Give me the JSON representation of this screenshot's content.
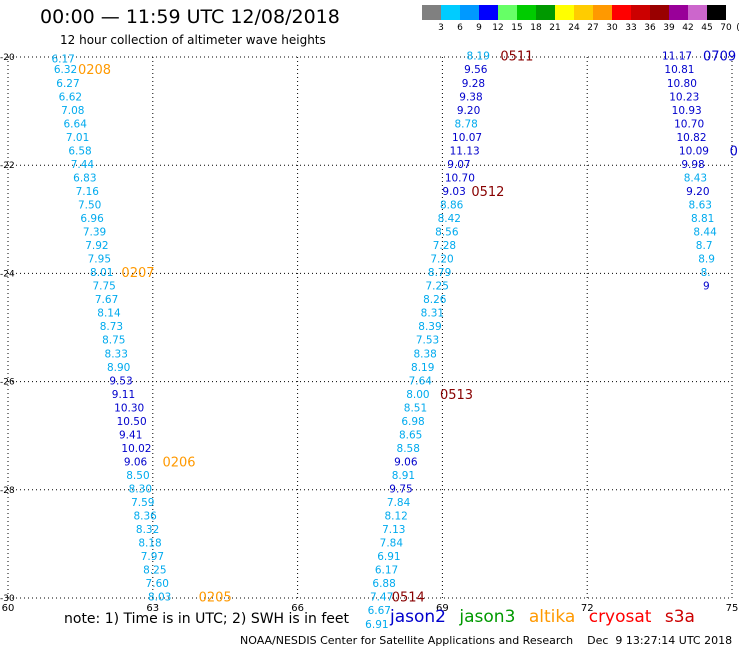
{
  "title": "00:00 — 11:59 UTC 12/08/2018",
  "subtitle": "12 hour collection of altimeter wave heights",
  "footer_note": "note:  1) Time is in UTC;  2) SWH is in feet",
  "credit": "NOAA/NESDIS Center for Satellite Applications and Research    Dec  9 13:27:14 UTC 2018",
  "satellites": [
    {
      "name": "jason2",
      "color": "#0000cc"
    },
    {
      "name": "jason3",
      "color": "#009900"
    },
    {
      "name": "altika",
      "color": "#ff9900"
    },
    {
      "name": "cryosat",
      "color": "#ff0000"
    },
    {
      "name": "s3a",
      "color": "#cc0000"
    }
  ],
  "colorbar": {
    "unit": "(ft)",
    "labels": [
      "3",
      "6",
      "9",
      "12",
      "15",
      "18",
      "21",
      "24",
      "27",
      "30",
      "33",
      "36",
      "39",
      "42",
      "45",
      "70"
    ],
    "colors": [
      "#808080",
      "#00ccff",
      "#0099ff",
      "#0000ff",
      "#66ff66",
      "#00cc00",
      "#009900",
      "#ffff00",
      "#ffcc00",
      "#ff9900",
      "#ff0000",
      "#cc0000",
      "#990000",
      "#990099",
      "#cc66cc",
      "#000000"
    ]
  },
  "chart_data": {
    "type": "scatter",
    "title": "00:00 — 11:59 UTC 12/08/2018",
    "subtitle": "12 hour collection of altimeter wave heights",
    "xlim": [
      60,
      75
    ],
    "ylim": [
      -30,
      -20
    ],
    "x_ticks": [
      "60",
      "63",
      "66",
      "69",
      "72",
      "75"
    ],
    "y_ticks": [
      "-20",
      "-22",
      "-24",
      "-26",
      "-28",
      "-30"
    ],
    "grid": true,
    "value_colors": {
      "low": "#00aaee",
      "mid": "#0000cc"
    },
    "tracks": [
      {
        "name": "altika",
        "label_color": "#ff9900",
        "points": [
          {
            "x": 60.9,
            "y": -20.1,
            "v": "6.17"
          },
          {
            "x": 60.95,
            "y": -20.3,
            "v": "6.32"
          },
          {
            "x": 61.0,
            "y": -20.55,
            "v": "6.27"
          },
          {
            "x": 61.05,
            "y": -20.8,
            "v": "6.62"
          },
          {
            "x": 61.1,
            "y": -21.05,
            "v": "7.08"
          },
          {
            "x": 61.15,
            "y": -21.3,
            "v": "6.64"
          },
          {
            "x": 61.2,
            "y": -21.55,
            "v": "7.01"
          },
          {
            "x": 61.25,
            "y": -21.8,
            "v": "6.58"
          },
          {
            "x": 61.3,
            "y": -22.05,
            "v": "7.44"
          },
          {
            "x": 61.35,
            "y": -22.3,
            "v": "6.83"
          },
          {
            "x": 61.4,
            "y": -22.55,
            "v": "7.16"
          },
          {
            "x": 61.45,
            "y": -22.8,
            "v": "7.50"
          },
          {
            "x": 61.5,
            "y": -23.05,
            "v": "6.96"
          },
          {
            "x": 61.55,
            "y": -23.3,
            "v": "7.39"
          },
          {
            "x": 61.6,
            "y": -23.55,
            "v": "7.92"
          },
          {
            "x": 61.65,
            "y": -23.8,
            "v": "7.95"
          },
          {
            "x": 61.7,
            "y": -24.05,
            "v": "8.01"
          },
          {
            "x": 61.75,
            "y": -24.3,
            "v": "7.75"
          },
          {
            "x": 61.8,
            "y": -24.55,
            "v": "7.67"
          },
          {
            "x": 61.85,
            "y": -24.8,
            "v": "8.14"
          },
          {
            "x": 61.9,
            "y": -25.05,
            "v": "8.73"
          },
          {
            "x": 61.95,
            "y": -25.3,
            "v": "8.75"
          },
          {
            "x": 62.0,
            "y": -25.55,
            "v": "8.33"
          },
          {
            "x": 62.05,
            "y": -25.8,
            "v": "8.90"
          },
          {
            "x": 62.1,
            "y": -26.05,
            "v": "9.53"
          },
          {
            "x": 62.15,
            "y": -26.3,
            "v": "9.11"
          },
          {
            "x": 62.2,
            "y": -26.55,
            "v": "10.30"
          },
          {
            "x": 62.25,
            "y": -26.8,
            "v": "10.50"
          },
          {
            "x": 62.3,
            "y": -27.05,
            "v": "9.41"
          },
          {
            "x": 62.35,
            "y": -27.3,
            "v": "10.02"
          },
          {
            "x": 62.4,
            "y": -27.55,
            "v": "9.06"
          },
          {
            "x": 62.45,
            "y": -27.8,
            "v": "8.50"
          },
          {
            "x": 62.5,
            "y": -28.05,
            "v": "8.30"
          },
          {
            "x": 62.55,
            "y": -28.3,
            "v": "7.59"
          },
          {
            "x": 62.6,
            "y": -28.55,
            "v": "8.36"
          },
          {
            "x": 62.65,
            "y": -28.8,
            "v": "8.32"
          },
          {
            "x": 62.7,
            "y": -29.05,
            "v": "8.18"
          },
          {
            "x": 62.75,
            "y": -29.3,
            "v": "7.97"
          },
          {
            "x": 62.8,
            "y": -29.55,
            "v": "8.25"
          },
          {
            "x": 62.85,
            "y": -29.8,
            "v": "7.60"
          },
          {
            "x": 62.9,
            "y": -30.05,
            "v": "8.03"
          }
        ],
        "time_labels": [
          {
            "x": 61.45,
            "y": -20.3,
            "t": "0208"
          },
          {
            "x": 62.35,
            "y": -24.05,
            "t": "0207"
          },
          {
            "x": 63.2,
            "y": -27.55,
            "t": "0206"
          },
          {
            "x": 63.95,
            "y": -30.05,
            "t": "0205"
          }
        ]
      },
      {
        "name": "s3a",
        "label_color": "#880000",
        "points": [
          {
            "x": 69.5,
            "y": -20.05,
            "v": "8.19"
          },
          {
            "x": 69.45,
            "y": -20.3,
            "v": "9.56"
          },
          {
            "x": 69.4,
            "y": -20.55,
            "v": "9.28"
          },
          {
            "x": 69.35,
            "y": -20.8,
            "v": "9.38"
          },
          {
            "x": 69.3,
            "y": -21.05,
            "v": "9.20"
          },
          {
            "x": 69.25,
            "y": -21.3,
            "v": "8.78"
          },
          {
            "x": 69.2,
            "y": -21.55,
            "v": "10.07"
          },
          {
            "x": 69.15,
            "y": -21.8,
            "v": "11.13"
          },
          {
            "x": 69.1,
            "y": -22.05,
            "v": "9.07"
          },
          {
            "x": 69.05,
            "y": -22.3,
            "v": "10.70"
          },
          {
            "x": 69.0,
            "y": -22.55,
            "v": "9.03"
          },
          {
            "x": 68.95,
            "y": -22.8,
            "v": "8.86"
          },
          {
            "x": 68.9,
            "y": -23.05,
            "v": "8.42"
          },
          {
            "x": 68.85,
            "y": -23.3,
            "v": "8.56"
          },
          {
            "x": 68.8,
            "y": -23.55,
            "v": "7.28"
          },
          {
            "x": 68.75,
            "y": -23.8,
            "v": "7.20"
          },
          {
            "x": 68.7,
            "y": -24.05,
            "v": "8.79"
          },
          {
            "x": 68.65,
            "y": -24.3,
            "v": "7.25"
          },
          {
            "x": 68.6,
            "y": -24.55,
            "v": "8.26"
          },
          {
            "x": 68.55,
            "y": -24.8,
            "v": "8.31"
          },
          {
            "x": 68.5,
            "y": -25.05,
            "v": "8.39"
          },
          {
            "x": 68.45,
            "y": -25.3,
            "v": "7.53"
          },
          {
            "x": 68.4,
            "y": -25.55,
            "v": "8.38"
          },
          {
            "x": 68.35,
            "y": -25.8,
            "v": "8.19"
          },
          {
            "x": 68.3,
            "y": -26.05,
            "v": "7.64"
          },
          {
            "x": 68.25,
            "y": -26.3,
            "v": "8.00"
          },
          {
            "x": 68.2,
            "y": -26.55,
            "v": "8.51"
          },
          {
            "x": 68.15,
            "y": -26.8,
            "v": "6.98"
          },
          {
            "x": 68.1,
            "y": -27.05,
            "v": "8.65"
          },
          {
            "x": 68.05,
            "y": -27.3,
            "v": "8.58"
          },
          {
            "x": 68.0,
            "y": -27.55,
            "v": "9.06"
          },
          {
            "x": 67.95,
            "y": -27.8,
            "v": "8.91"
          },
          {
            "x": 67.9,
            "y": -28.05,
            "v": "9.75"
          },
          {
            "x": 67.85,
            "y": -28.3,
            "v": "7.84"
          },
          {
            "x": 67.8,
            "y": -28.55,
            "v": "8.12"
          },
          {
            "x": 67.75,
            "y": -28.8,
            "v": "7.13"
          },
          {
            "x": 67.7,
            "y": -29.05,
            "v": "7.84"
          },
          {
            "x": 67.65,
            "y": -29.3,
            "v": "6.91"
          },
          {
            "x": 67.6,
            "y": -29.55,
            "v": "6.17"
          },
          {
            "x": 67.55,
            "y": -29.8,
            "v": "6.88"
          },
          {
            "x": 67.5,
            "y": -30.05,
            "v": "7.47"
          },
          {
            "x": 67.45,
            "y": -30.3,
            "v": "6.67"
          },
          {
            "x": 67.4,
            "y": -30.55,
            "v": "6.91"
          }
        ],
        "time_labels": [
          {
            "x": 70.2,
            "y": -20.05,
            "t": "0511"
          },
          {
            "x": 69.6,
            "y": -22.55,
            "t": "0512"
          },
          {
            "x": 68.95,
            "y": -26.3,
            "t": "0513"
          },
          {
            "x": 67.95,
            "y": -30.05,
            "t": "0514"
          }
        ]
      },
      {
        "name": "jason2",
        "label_color": "#0000cc",
        "points": [
          {
            "x": 73.55,
            "y": -20.05,
            "v": "11.17"
          },
          {
            "x": 73.6,
            "y": -20.3,
            "v": "10.81"
          },
          {
            "x": 73.65,
            "y": -20.55,
            "v": "10.80"
          },
          {
            "x": 73.7,
            "y": -20.8,
            "v": "10.23"
          },
          {
            "x": 73.75,
            "y": -21.05,
            "v": "10.93"
          },
          {
            "x": 73.8,
            "y": -21.3,
            "v": "10.70"
          },
          {
            "x": 73.85,
            "y": -21.55,
            "v": "10.82"
          },
          {
            "x": 73.9,
            "y": -21.8,
            "v": "10.09"
          },
          {
            "x": 73.95,
            "y": -22.05,
            "v": "9.98"
          },
          {
            "x": 74.0,
            "y": -22.3,
            "v": "8.43"
          },
          {
            "x": 74.05,
            "y": -22.55,
            "v": "9.20"
          },
          {
            "x": 74.1,
            "y": -22.8,
            "v": "8.63"
          },
          {
            "x": 74.15,
            "y": -23.05,
            "v": "8.81"
          },
          {
            "x": 74.2,
            "y": -23.3,
            "v": "8.44"
          },
          {
            "x": 74.25,
            "y": -23.55,
            "v": "8.7"
          },
          {
            "x": 74.3,
            "y": -23.8,
            "v": "8.9"
          },
          {
            "x": 74.35,
            "y": -24.05,
            "v": "8."
          },
          {
            "x": 74.4,
            "y": -24.3,
            "v": "9"
          }
        ],
        "time_labels": [
          {
            "x": 74.4,
            "y": -20.05,
            "t": "0709"
          },
          {
            "x": 74.95,
            "y": -21.8,
            "t": "0"
          }
        ]
      }
    ]
  }
}
